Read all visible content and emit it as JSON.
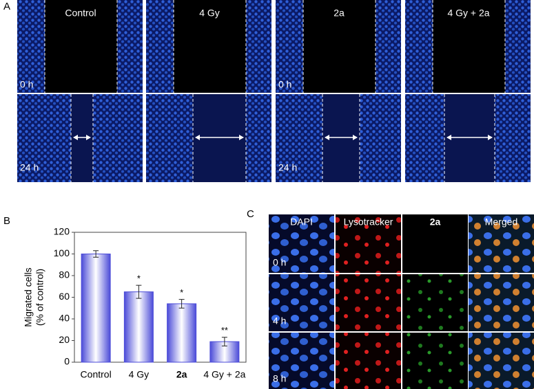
{
  "panel_labels": [
    "A",
    "B",
    "C"
  ],
  "panel_a": {
    "columns": [
      "Control",
      "4 Gy",
      "2a",
      "4 Gy + 2a"
    ],
    "rows": [
      "0 h",
      "24 h"
    ]
  },
  "chart_data": {
    "type": "bar",
    "ylabel": [
      "Migrated cells",
      "(% of control)"
    ],
    "categories": [
      "Control",
      "4 Gy",
      "2a",
      "4 Gy + 2a"
    ],
    "values": [
      100,
      65,
      54,
      19
    ],
    "errors": [
      3,
      6,
      4,
      4
    ],
    "significance": [
      null,
      "*",
      "*",
      "**"
    ],
    "color": "#4b4bd8",
    "ylim": [
      0,
      120
    ],
    "yticks": [
      0,
      20,
      40,
      60,
      80,
      100,
      120
    ]
  },
  "panel_c": {
    "columns": [
      "DAPI",
      "Lysotracker",
      "2a",
      "Merged"
    ],
    "rows": [
      "0 h",
      "4 h",
      "8 h"
    ]
  }
}
